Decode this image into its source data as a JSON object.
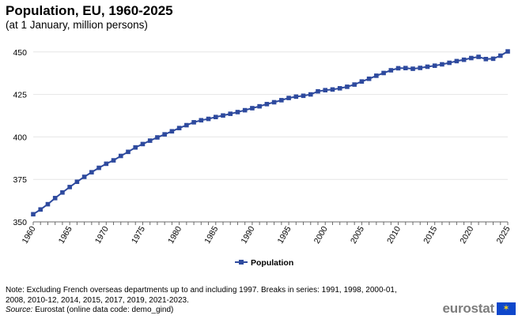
{
  "title": "Population, EU, 1960-2025",
  "subtitle": "(at 1 January, million persons)",
  "note": "Note: Excluding French overseas departments up to and including 1997. Breaks in series: 1991, 1998, 2000-01,",
  "note_line2": "2008, 2010-12, 2014, 2015, 2017, 2019, 2021-2023.",
  "source_label": "Source:",
  "source_text": " Eurostat (online data code: demo_gind)",
  "logo_text": "eurostat",
  "colors": {
    "series": "#2e4a9e",
    "grid": "#e6e6e6",
    "axis": "#6b6b6b"
  },
  "chart_data": {
    "type": "line",
    "title": "Population, EU, 1960-2025",
    "subtitle": "(at 1 January, million persons)",
    "ylim": [
      350,
      455
    ],
    "yticks": [
      350,
      375,
      400,
      425,
      450
    ],
    "xticks": [
      1960,
      1965,
      1970,
      1975,
      1980,
      1985,
      1990,
      1995,
      2000,
      2005,
      2010,
      2015,
      2020,
      2025
    ],
    "grid": "horizontal",
    "legend_position": "bottom",
    "series": [
      {
        "name": "Population",
        "x": [
          1960,
          1961,
          1962,
          1963,
          1964,
          1965,
          1966,
          1967,
          1968,
          1969,
          1970,
          1971,
          1972,
          1973,
          1974,
          1975,
          1976,
          1977,
          1978,
          1979,
          1980,
          1981,
          1982,
          1983,
          1984,
          1985,
          1986,
          1987,
          1988,
          1989,
          1990,
          1991,
          1992,
          1993,
          1994,
          1995,
          1996,
          1997,
          1998,
          1999,
          2000,
          2001,
          2002,
          2003,
          2004,
          2005,
          2006,
          2007,
          2008,
          2009,
          2010,
          2011,
          2012,
          2013,
          2014,
          2015,
          2016,
          2017,
          2018,
          2019,
          2020,
          2021,
          2022,
          2023,
          2024,
          2025
        ],
        "values": [
          354.5,
          357.3,
          360.4,
          364.0,
          367.3,
          370.5,
          373.6,
          376.5,
          379.2,
          381.8,
          384.2,
          386.2,
          388.8,
          391.2,
          393.8,
          395.8,
          397.8,
          399.7,
          401.5,
          403.3,
          405.2,
          406.9,
          408.6,
          409.8,
          410.6,
          411.7,
          412.6,
          413.6,
          414.6,
          415.7,
          416.9,
          418.0,
          419.3,
          420.4,
          421.6,
          422.9,
          423.7,
          424.2,
          425.0,
          426.8,
          427.5,
          427.9,
          428.6,
          429.5,
          430.8,
          432.6,
          434.2,
          436.0,
          437.6,
          439.2,
          440.4,
          440.5,
          440.1,
          440.6,
          441.3,
          441.9,
          442.7,
          443.6,
          444.6,
          445.4,
          446.4,
          447.1,
          445.8,
          446.0,
          447.8,
          450.3
        ]
      }
    ]
  }
}
